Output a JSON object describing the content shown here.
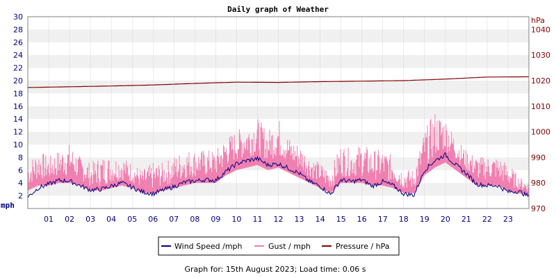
{
  "chart_data": {
    "type": "line",
    "title": "Daily graph of Weather",
    "footer": "Graph for: 15th August 2023; Load time: 0.06 s",
    "y_left": {
      "label": "mph",
      "range": [
        0,
        30
      ],
      "ticks": [
        2,
        4,
        6,
        8,
        10,
        12,
        14,
        16,
        18,
        20,
        22,
        24,
        26,
        28,
        30
      ],
      "tick_color": "#000080"
    },
    "y_right": {
      "label": "hPa",
      "range": [
        970,
        1045
      ],
      "ticks": [
        970,
        980,
        990,
        1000,
        1010,
        1020,
        1030,
        1040
      ],
      "tick_color": "#800000"
    },
    "x": {
      "label": "",
      "range": [
        0,
        24
      ],
      "ticks": [
        "01",
        "02",
        "03",
        "04",
        "05",
        "06",
        "07",
        "08",
        "09",
        "10",
        "11",
        "12",
        "13",
        "14",
        "15",
        "16",
        "17",
        "18",
        "19",
        "20",
        "21",
        "22",
        "23"
      ]
    },
    "grid": "horizontal bands",
    "legend_position": "bottom-center",
    "series": [
      {
        "name": "Wind Speed /mph",
        "axis": "left",
        "color": "#000080",
        "hours": [
          0,
          0.5,
          1,
          1.5,
          2,
          2.5,
          3,
          3.5,
          4,
          4.5,
          5,
          5.5,
          6,
          6.5,
          7,
          7.5,
          8,
          8.5,
          9,
          9.5,
          10,
          10.5,
          11,
          11.5,
          12,
          12.5,
          13,
          13.5,
          14,
          14.5,
          15,
          15.5,
          16,
          16.5,
          17,
          17.5,
          18,
          18.5,
          19,
          19.5,
          20,
          20.5,
          21,
          21.5,
          22,
          22.5,
          23,
          23.5,
          24
        ],
        "values": [
          1.8,
          3.2,
          3.8,
          4.4,
          4.3,
          3.6,
          2.9,
          3.0,
          3.5,
          4.0,
          3.3,
          2.6,
          2.3,
          2.9,
          3.4,
          4.1,
          4.3,
          4.5,
          4.4,
          5.8,
          7.0,
          7.5,
          7.8,
          6.8,
          7.0,
          6.3,
          5.5,
          4.2,
          3.5,
          2.2,
          4.5,
          4.2,
          4.5,
          3.5,
          4.2,
          3.6,
          2.3,
          2.1,
          6.0,
          7.5,
          8.4,
          6.8,
          5.5,
          3.8,
          3.6,
          3.6,
          2.6,
          2.7,
          1.9
        ]
      },
      {
        "name": "Gust / mph",
        "axis": "left",
        "color": "#f080b0",
        "hours": [
          0,
          0.5,
          1,
          1.5,
          2,
          2.5,
          3,
          3.5,
          4,
          4.5,
          5,
          5.5,
          6,
          6.5,
          7,
          7.5,
          8,
          8.5,
          9,
          9.5,
          10,
          10.5,
          11,
          11.5,
          12,
          12.5,
          13,
          13.5,
          14,
          14.5,
          15,
          15.5,
          16,
          16.5,
          17,
          17.5,
          18,
          18.5,
          19,
          19.5,
          20,
          20.5,
          21,
          21.5,
          22,
          22.5,
          23,
          23.5,
          24
        ],
        "values": [
          7,
          9,
          8,
          9,
          10,
          8,
          7,
          8,
          8,
          8,
          7,
          6,
          7,
          7,
          8,
          9,
          9,
          9,
          9,
          11,
          12,
          13,
          14,
          12,
          14,
          11,
          10,
          8,
          7,
          6,
          10,
          9,
          10,
          9,
          9,
          8,
          6,
          6,
          12,
          15,
          14,
          11,
          9,
          8,
          8,
          8,
          7,
          5,
          4
        ],
        "base_values": [
          3.5,
          4.5,
          4.5,
          5,
          5,
          4.5,
          3.5,
          3.5,
          4,
          4.5,
          4,
          3,
          3,
          3.5,
          4,
          4.5,
          5,
          5,
          5,
          6.5,
          7.5,
          8,
          8.5,
          7.5,
          8,
          7,
          6,
          5,
          4,
          3,
          5,
          5,
          5,
          4.5,
          4.5,
          4,
          3,
          3,
          6.5,
          8,
          9,
          7.5,
          6,
          4.5,
          4.5,
          4.5,
          3.5,
          3,
          2.5
        ]
      },
      {
        "name": "Pressure / hPa",
        "axis": "right",
        "color": "#800000",
        "hours": [
          0,
          2,
          4,
          6,
          8,
          10,
          12,
          14,
          16,
          18,
          20,
          22,
          24
        ],
        "values": [
          1017.3,
          1017.6,
          1017.9,
          1018.3,
          1018.9,
          1019.4,
          1019.3,
          1019.6,
          1019.8,
          1020.0,
          1020.6,
          1021.4,
          1021.5
        ]
      }
    ]
  }
}
